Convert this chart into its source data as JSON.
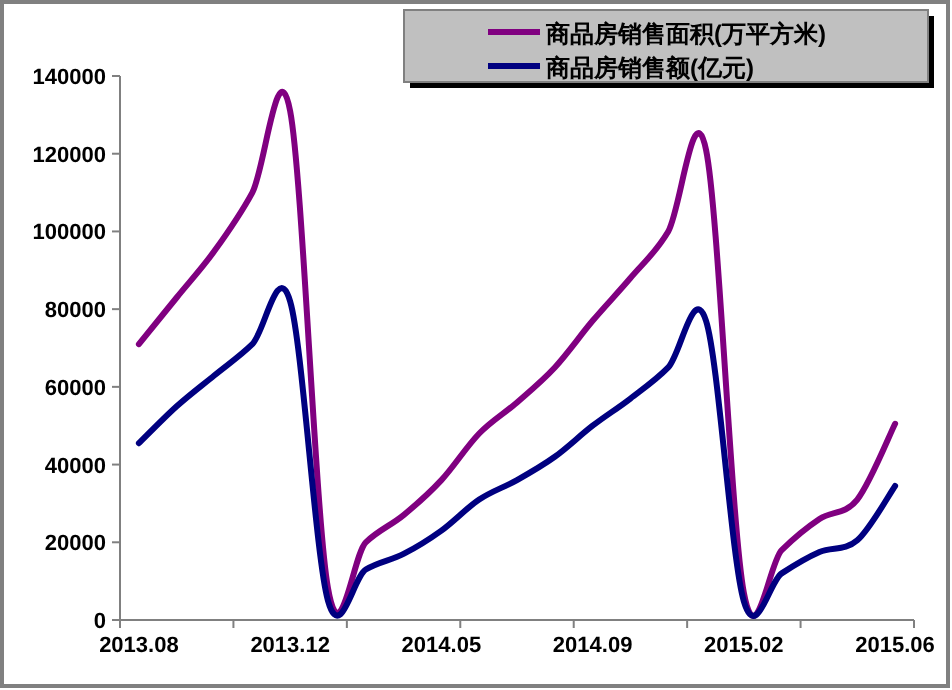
{
  "chart_data": {
    "type": "line",
    "categories": [
      "2013.08",
      null,
      null,
      null,
      "2013.12",
      null,
      null,
      null,
      "2014.05",
      null,
      null,
      null,
      "2014.09",
      null,
      null,
      null,
      "2015.02",
      null,
      null,
      null,
      "2015.06"
    ],
    "series": [
      {
        "name": "商品房销售面积(万平方米)",
        "color": "#800080",
        "values": [
          71000,
          83000,
          95000,
          110000,
          131000,
          8200,
          20000,
          27000,
          36000,
          48000,
          56000,
          65000,
          77000,
          88000,
          100000,
          121000,
          7000,
          18000,
          26000,
          31000,
          50500
        ]
      },
      {
        "name": "商品房销售额(亿元)",
        "color": "#000080",
        "values": [
          45500,
          55000,
          63000,
          71000,
          82000,
          5000,
          13000,
          17000,
          23000,
          31000,
          36000,
          42000,
          50000,
          57000,
          65000,
          77000,
          4800,
          12000,
          17500,
          20500,
          34500
        ]
      }
    ],
    "ylim": [
      0,
      140000
    ],
    "yticks": [
      0,
      20000,
      40000,
      60000,
      80000,
      100000,
      120000,
      140000
    ],
    "grid": false,
    "legend": "top right",
    "marker": "none",
    "line_style": "solid"
  }
}
